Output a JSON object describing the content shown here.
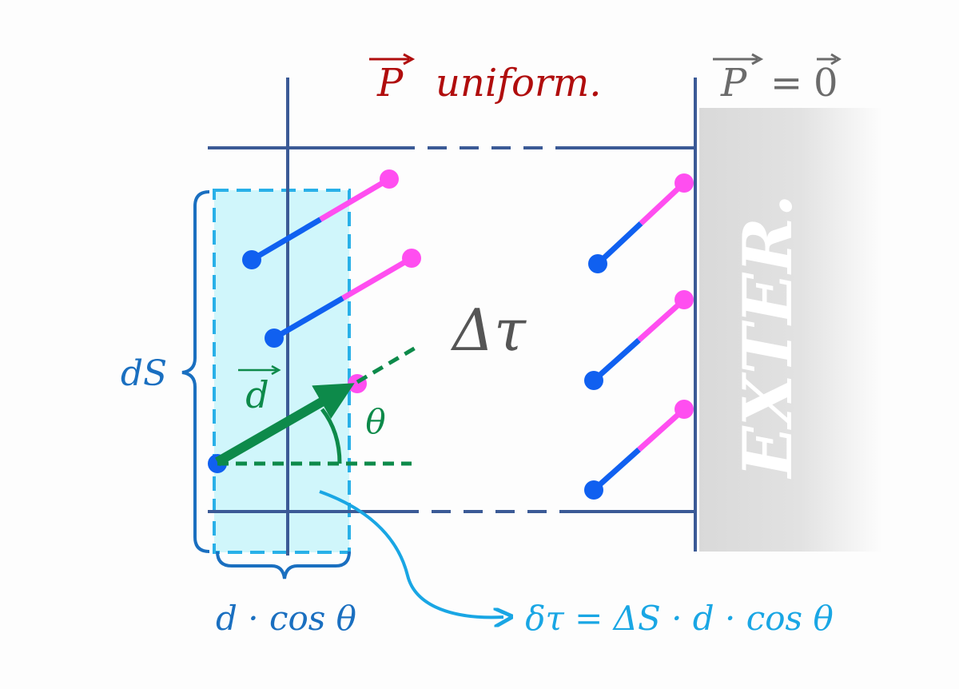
{
  "labels": {
    "title_vector": "P",
    "title_text": "uniform.",
    "exterior_eq_lhs": "P",
    "exterior_eq_mid": "=",
    "exterior_eq_rhs": "0",
    "exterior": "EXTER.",
    "volume": "Δτ",
    "surface": "dS",
    "dipole_vector": "d",
    "angle": "θ",
    "projection": "d · cos θ",
    "formula": "δτ = ΔS · d · cos θ"
  },
  "colors": {
    "title": "#b00d0d",
    "exterior_text": "#6b6b6b",
    "frame": "#3b5a96",
    "slab_fill": "#d0f6fb",
    "slab_stroke": "#29b0e8",
    "dipole_negative": "#1060f0",
    "dipole_positive": "#ff4ef0",
    "dipole_vector": "#0d8a4a",
    "brace": "#1a6fc0",
    "formula": "#19a6e4",
    "volume_label": "#555555"
  }
}
